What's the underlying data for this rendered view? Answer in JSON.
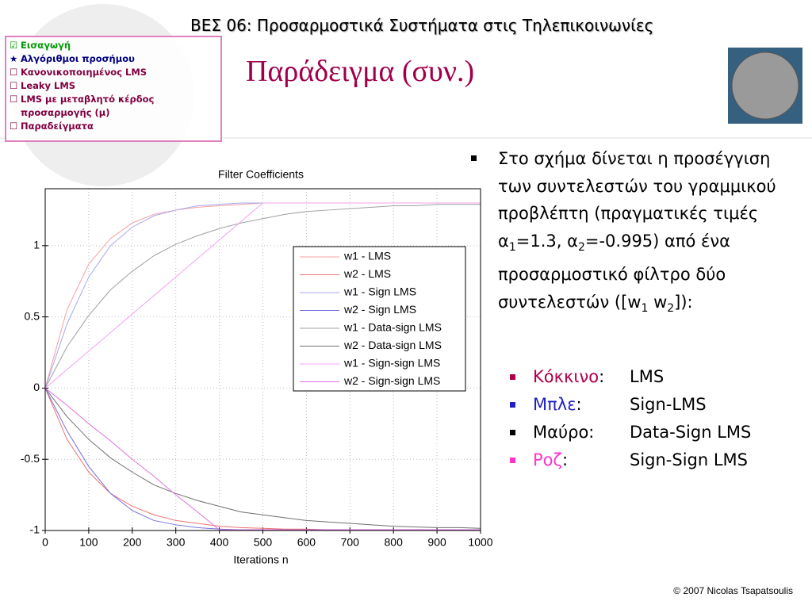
{
  "header": "ΒΕΣ 06: Προσαρμοστικά Συστήματα στις Τηλεπικοινωνίες",
  "slide_title": "Παράδειγμα (συν.)",
  "nav": [
    {
      "marker": "☑",
      "text": "Εισαγωγή",
      "color": "#009900"
    },
    {
      "marker": "★",
      "text": "Αλγόριθμοι προσήμου",
      "color": "#000080"
    },
    {
      "marker": "☐",
      "text": "Κανονικοποιημένος LMS",
      "color": "#800040"
    },
    {
      "marker": "☐",
      "text": "Leaky LMS",
      "color": "#800040"
    },
    {
      "marker": "☐",
      "text": "LMS με μεταβλητό κέρδος προσαρμογής (μ)",
      "color": "#800040"
    },
    {
      "marker": "☐",
      "text": "Παραδείγματα",
      "color": "#800040"
    }
  ],
  "bullet_parts": [
    "Στο σχήμα δίνεται η προσέγγιση των συντελεστών του γραμμικού προβλέπτη  (πραγματικές τιμές α",
    "1",
    "=1.3, α",
    "2",
    "=-0.995) από ένα προσαρμοστικό φίλτρο δύο συντελεστών ([w",
    "1",
    " w",
    "2",
    "]):"
  ],
  "legend_items": [
    {
      "label": "Κόκκινο",
      "colon": ":",
      "value": "LMS",
      "color": "#b0004a"
    },
    {
      "label": "Μπλε",
      "colon": ":",
      "value": "Sign-LMS",
      "color": "#2020c0"
    },
    {
      "label": "Μαύρο",
      "colon": ":",
      "value": "Data-Sign LMS",
      "color": "#000000"
    },
    {
      "label": "Ροζ",
      "colon": ":",
      "value": "Sign-Sign LMS",
      "color": "#ff33cc"
    }
  ],
  "footer": "© 2007 Nicolas Tsapatsoulis",
  "chart_data": {
    "type": "line",
    "title": "Filter Coefficients",
    "x_label": "Iterations n",
    "x": [
      0,
      50,
      100,
      150,
      200,
      250,
      300,
      350,
      400,
      450,
      500,
      550,
      600,
      650,
      700,
      750,
      800,
      850,
      900,
      950,
      1000
    ],
    "xlim": [
      0,
      1000
    ],
    "xticks": [
      0,
      100,
      200,
      300,
      400,
      500,
      600,
      700,
      800,
      900,
      1000
    ],
    "ylim": [
      -1,
      1.4
    ],
    "yticks": [
      -1,
      -0.5,
      0,
      0.5,
      1
    ],
    "grid": true,
    "series": [
      {
        "name": "w1 - LMS",
        "color": "#f4a0a0",
        "values": [
          0,
          0.55,
          0.87,
          1.05,
          1.16,
          1.22,
          1.25,
          1.27,
          1.28,
          1.29,
          1.3,
          1.3,
          1.3,
          1.3,
          1.3,
          1.3,
          1.3,
          1.3,
          1.3,
          1.3,
          1.3
        ]
      },
      {
        "name": "w2 - LMS",
        "color": "#f07070",
        "values": [
          0,
          -0.36,
          -0.59,
          -0.74,
          -0.83,
          -0.89,
          -0.93,
          -0.95,
          -0.97,
          -0.98,
          -0.985,
          -0.99,
          -0.99,
          -0.995,
          -0.995,
          -0.995,
          -0.995,
          -0.995,
          -0.995,
          -0.995,
          -0.995
        ]
      },
      {
        "name": "w1 - Sign LMS",
        "color": "#a8a8f0",
        "values": [
          0,
          0.45,
          0.78,
          1.0,
          1.13,
          1.21,
          1.25,
          1.28,
          1.29,
          1.3,
          1.3,
          1.3,
          1.3,
          1.3,
          1.3,
          1.3,
          1.3,
          1.3,
          1.3,
          1.3,
          1.3
        ]
      },
      {
        "name": "w2 - Sign LMS",
        "color": "#7070e0",
        "values": [
          0,
          -0.3,
          -0.55,
          -0.74,
          -0.86,
          -0.93,
          -0.96,
          -0.98,
          -0.99,
          -0.995,
          -0.995,
          -0.995,
          -0.995,
          -0.995,
          -0.995,
          -0.995,
          -0.995,
          -0.995,
          -0.995,
          -0.995,
          -0.995
        ]
      },
      {
        "name": "w1 - Data-sign LMS",
        "color": "#a0a0a0",
        "values": [
          0,
          0.29,
          0.51,
          0.69,
          0.82,
          0.93,
          1.01,
          1.07,
          1.12,
          1.16,
          1.19,
          1.22,
          1.24,
          1.25,
          1.26,
          1.27,
          1.28,
          1.28,
          1.29,
          1.29,
          1.29
        ]
      },
      {
        "name": "w2 - Data-sign LMS",
        "color": "#707070",
        "values": [
          0,
          -0.2,
          -0.36,
          -0.49,
          -0.59,
          -0.68,
          -0.74,
          -0.79,
          -0.83,
          -0.87,
          -0.89,
          -0.91,
          -0.93,
          -0.94,
          -0.95,
          -0.96,
          -0.97,
          -0.975,
          -0.98,
          -0.98,
          -0.985
        ]
      },
      {
        "name": "w1 - Sign-sign LMS",
        "color": "#f4a0f4",
        "values": [
          0,
          0.13,
          0.26,
          0.39,
          0.52,
          0.65,
          0.78,
          0.91,
          1.04,
          1.17,
          1.3,
          1.3,
          1.3,
          1.3,
          1.3,
          1.3,
          1.3,
          1.3,
          1.3,
          1.3,
          1.3
        ]
      },
      {
        "name": "w2 - Sign-sign LMS",
        "color": "#e070e0",
        "values": [
          0,
          -0.12,
          -0.25,
          -0.37,
          -0.5,
          -0.62,
          -0.75,
          -0.87,
          -0.995,
          -0.995,
          -0.995,
          -0.995,
          -0.995,
          -0.995,
          -0.995,
          -0.995,
          -0.995,
          -0.995,
          -0.995,
          -0.995,
          -0.995
        ]
      }
    ]
  }
}
